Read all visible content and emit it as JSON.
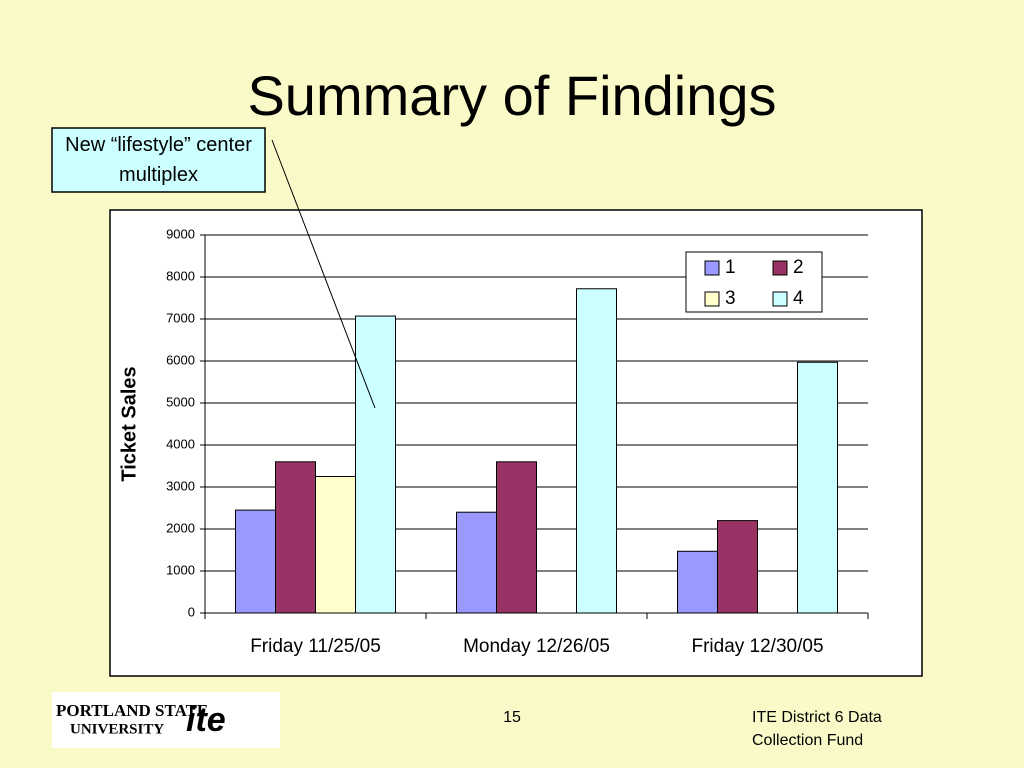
{
  "chart_data": {
    "type": "bar",
    "title": "Summary of Findings",
    "annotation": "New “lifestyle” center multiplex",
    "y_label": "Ticket Sales",
    "categories": [
      "Friday 11/25/05",
      "Monday 12/26/05",
      "Friday 12/30/05"
    ],
    "series": [
      {
        "name": "1",
        "color": "#9999ff",
        "values": [
          2450,
          2400,
          1470
        ]
      },
      {
        "name": "2",
        "color": "#993366",
        "values": [
          3600,
          3600,
          2200
        ]
      },
      {
        "name": "3",
        "color": "#ffffcc",
        "values": [
          3250,
          null,
          null
        ]
      },
      {
        "name": "4",
        "color": "#ccffff",
        "values": [
          7070,
          7720,
          5970
        ]
      }
    ],
    "ylim": [
      0,
      9000
    ],
    "yticks": [
      0,
      1000,
      2000,
      3000,
      4000,
      5000,
      6000,
      7000,
      8000,
      9000
    ],
    "grid": true,
    "legend": "top-right"
  },
  "footer": {
    "page": "15",
    "text": "ITE District 6 Data Collection Fund",
    "logo": {
      "line1": "PORTLAND STATE",
      "line2": "UNIVERSITY",
      "mark": "ite"
    }
  }
}
